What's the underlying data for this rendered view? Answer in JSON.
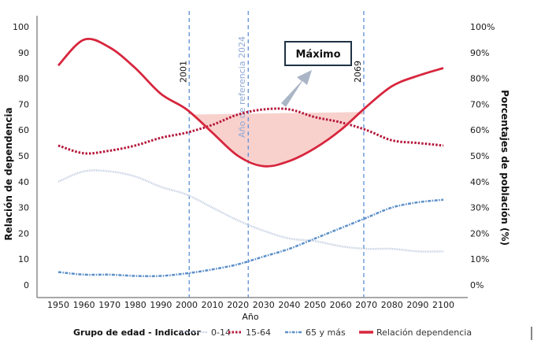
{
  "chart_data": {
    "type": "line",
    "title": "",
    "xlabel": "Año",
    "ylabel_left": "Relación de dependencia",
    "ylabel_right": "Porcentajes de población (%)",
    "x": [
      1950,
      1960,
      1970,
      1980,
      1990,
      2000,
      2010,
      2020,
      2030,
      2040,
      2050,
      2060,
      2070,
      2080,
      2090,
      2100
    ],
    "x_ticks": [
      "1950",
      "1960",
      "1970",
      "1980",
      "1990",
      "2000",
      "2010",
      "2020",
      "2030",
      "2040",
      "2050",
      "2060",
      "2070",
      "2080",
      "2090",
      "2100"
    ],
    "xlim": [
      1950,
      2100
    ],
    "ylim_left": [
      0,
      100
    ],
    "ylim_right": [
      0,
      100
    ],
    "y_ticks_left": [
      "0",
      "10",
      "20",
      "30",
      "40",
      "50",
      "60",
      "70",
      "80",
      "90",
      "100"
    ],
    "y_ticks_right": [
      "0%",
      "10%",
      "20%",
      "30%",
      "40%",
      "50%",
      "60%",
      "70%",
      "80%",
      "90%",
      "100%"
    ],
    "grid": false,
    "series": [
      {
        "name": "0-14",
        "axis": "right",
        "style": "dotted-light",
        "color": "#b9c7dc",
        "values": [
          40,
          44,
          44,
          42,
          38,
          35,
          30,
          25,
          21,
          18,
          17,
          15,
          14,
          14,
          13,
          13
        ]
      },
      {
        "name": "15-64",
        "axis": "right",
        "style": "dotted",
        "color": "#b5173a",
        "values": [
          54,
          51,
          52,
          54,
          57,
          59,
          62,
          66,
          68,
          68,
          65,
          63,
          60,
          56,
          55,
          54
        ]
      },
      {
        "name": "65 y más",
        "axis": "right",
        "style": "dash-dot",
        "color": "#5b8fc9",
        "values": [
          5,
          4,
          4,
          3.5,
          3.5,
          4.5,
          6,
          8,
          11,
          14,
          18,
          22,
          26,
          30,
          32,
          33
        ]
      },
      {
        "name": "Relación dependencia",
        "axis": "left",
        "style": "solid",
        "color": "#d7263d",
        "values": [
          85,
          95,
          92,
          84,
          74,
          68,
          59,
          50,
          46,
          48,
          53,
          60,
          69,
          77,
          81,
          84
        ]
      }
    ],
    "reference_lines": [
      {
        "x": 2001,
        "label": "2001",
        "color": "#5b8fd6"
      },
      {
        "x": 2024,
        "label": "Año de referencia 2024",
        "color": "#5b8fd6"
      },
      {
        "x": 2069,
        "label": "2069",
        "color": "#5b8fd6"
      }
    ],
    "shaded_region": {
      "from": 2001,
      "to": 2069,
      "top_level_left": 66,
      "color": "#f7c9c4",
      "description": "Area below ~66 and above dependency ratio curve"
    },
    "annotations": [
      {
        "text": "Máximo",
        "type": "box-with-arrow",
        "points_to_x": 2035
      }
    ],
    "legend": {
      "title": "Grupo de edad - Indicador",
      "placement": "bottom",
      "entries": [
        "0-14",
        "15-64",
        "65 y más",
        "Relación dependencia"
      ]
    }
  }
}
